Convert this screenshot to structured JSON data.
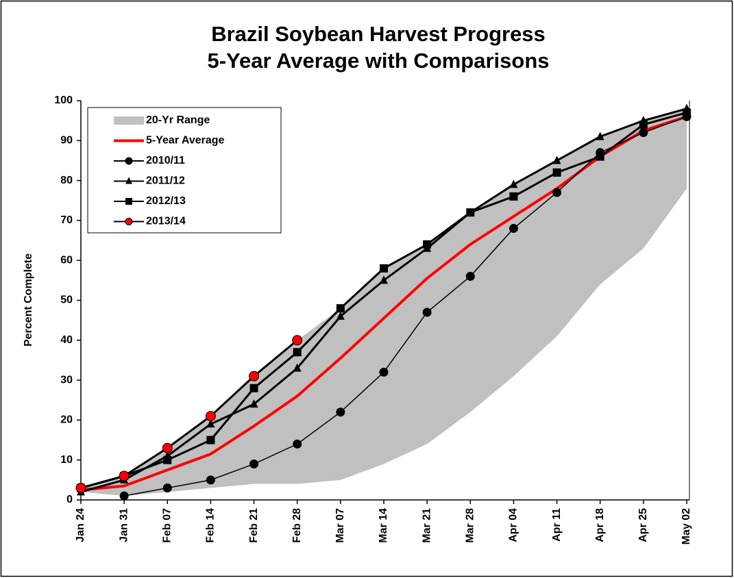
{
  "chart_data": {
    "type": "line",
    "title": "Brazil Soybean Harvest Progress",
    "subtitle": "5-Year Average with Comparisons",
    "y_label": "Percent Complete",
    "categories": [
      "Jan 24",
      "Jan 31",
      "Feb 07",
      "Feb 14",
      "Feb 21",
      "Feb 28",
      "Mar 07",
      "Mar 14",
      "Mar 21",
      "Mar 28",
      "Apr 04",
      "Apr 11",
      "Apr 18",
      "Apr 25",
      "May 02"
    ],
    "ylim": [
      0,
      100
    ],
    "yticks": [
      0,
      10,
      20,
      30,
      40,
      50,
      60,
      70,
      80,
      90,
      100
    ],
    "legend": "upper left",
    "series": [
      {
        "name": "20-Yr Range",
        "color": "#c0c0c0",
        "kind": "band",
        "low": [
          2,
          1,
          2,
          3,
          4,
          4,
          5,
          9,
          14,
          22,
          31,
          41,
          54,
          63,
          78
        ],
        "high": [
          3,
          6,
          13,
          21,
          31,
          40,
          48,
          58,
          64,
          72,
          79,
          85,
          91,
          95,
          98
        ]
      },
      {
        "name": "5-Year Average",
        "color": "#ff0000",
        "kind": "line",
        "values": [
          2.5,
          3.5,
          7.5,
          11.5,
          18.5,
          26,
          35.5,
          45.5,
          55.5,
          64,
          71,
          78,
          86,
          92.5,
          96
        ]
      },
      {
        "name": "2010/11",
        "color": "#000000",
        "kind": "line",
        "marker": "circle",
        "values": [
          null,
          1,
          3,
          5,
          9,
          14,
          22,
          32,
          47,
          56,
          68,
          77,
          87,
          92,
          96
        ]
      },
      {
        "name": "2011/12",
        "color": "#000000",
        "kind": "line",
        "marker": "triangle",
        "values": [
          2,
          5,
          11,
          19,
          24,
          33,
          46,
          55,
          63,
          72,
          79,
          85,
          91,
          95,
          98
        ]
      },
      {
        "name": "2012/13",
        "color": "#000000",
        "kind": "line",
        "marker": "square",
        "values": [
          3,
          6,
          10,
          15,
          28,
          37,
          48,
          58,
          64,
          72,
          76,
          82,
          86,
          94,
          97
        ]
      },
      {
        "name": "2013/14",
        "color": "#000000",
        "kind": "line",
        "marker": "circle",
        "marker_color": "#ff0000",
        "values": [
          3,
          6,
          13,
          21,
          31,
          40,
          null,
          null,
          null,
          null,
          null,
          null,
          null,
          null,
          null
        ]
      }
    ]
  }
}
